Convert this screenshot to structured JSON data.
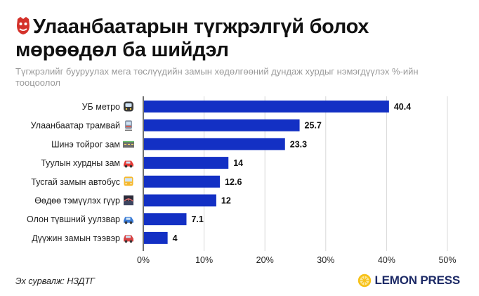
{
  "title": "Улаанбаатарын түгжрэлгүй болох мөрөөдөл ба шийдэл",
  "subtitle": "Түгжрэлийг бууруулах мега төслүүдийн замын хөдөлгөөний дундаж хурдыг нэмэгдүүлэх %-ийн тооцоолол",
  "source": "Эх сурвалж: НЗДТГ",
  "brand": "LEMON PRESS",
  "colors": {
    "bar": "#1330c4",
    "grid": "#d9d9d9",
    "axis": "#222222",
    "brand": "#1d2a66",
    "lemon": "#f7c21a"
  },
  "icons": [
    "metro-emoji",
    "tram-emoji",
    "road-emoji",
    "car-emoji",
    "bus-emoji",
    "bridge-emoji",
    "overpass-car-emoji",
    "parking-car-emoji"
  ],
  "chart_data": {
    "type": "bar",
    "orientation": "horizontal",
    "categories": [
      "УБ метро",
      "Улаанбаатар трамвай",
      "Шинэ тойрог зам",
      "Туулын хурдны зам",
      "Тусгай замын автобус",
      "Өөдөө тэмүүлэх гүүр",
      "Олон түвшний уулзвар",
      "Дүүжин замын тээвэр"
    ],
    "values": [
      40.4,
      25.7,
      23.3,
      14,
      12.6,
      12,
      7.1,
      4
    ],
    "value_labels": [
      "40.4",
      "25.7",
      "23.3",
      "14",
      "12.6",
      "12",
      "7.1",
      "4"
    ],
    "xlim": [
      0,
      50
    ],
    "xticks": [
      0,
      10,
      20,
      30,
      40,
      50
    ],
    "xtick_labels": [
      "0%",
      "10%",
      "20%",
      "30%",
      "40%",
      "50%"
    ],
    "grid": true
  }
}
